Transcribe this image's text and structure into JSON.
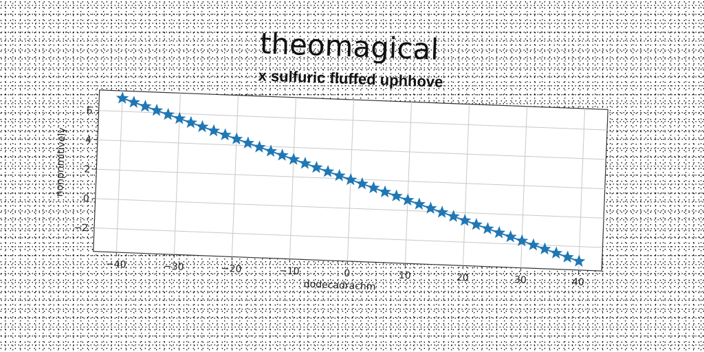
{
  "chart_data": {
    "type": "line",
    "title": "theomagical",
    "subtitle": "x sulfuric fluffed uphhove",
    "xlabel": "dodecadrachm",
    "ylabel": "nonprimitively",
    "xlim": [
      -44,
      44
    ],
    "ylim": [
      -3.6,
      7.4
    ],
    "xticks": [
      -40,
      -30,
      -20,
      -10,
      0,
      10,
      20,
      30,
      40
    ],
    "yticks": [
      -2,
      0,
      2,
      4,
      6
    ],
    "xtick_labels": [
      "−40",
      "−30",
      "−20",
      "−10",
      "0",
      "10",
      "20",
      "30",
      "40"
    ],
    "ytick_labels": [
      "−2",
      "0",
      "2",
      "4",
      "6"
    ],
    "grid": true,
    "marker": "star",
    "series": [
      {
        "color": "#1f77b4",
        "x_start": -40,
        "x_end": 40,
        "n_points": 41,
        "y_start": 6.9,
        "y_end": -3.0
      }
    ]
  }
}
